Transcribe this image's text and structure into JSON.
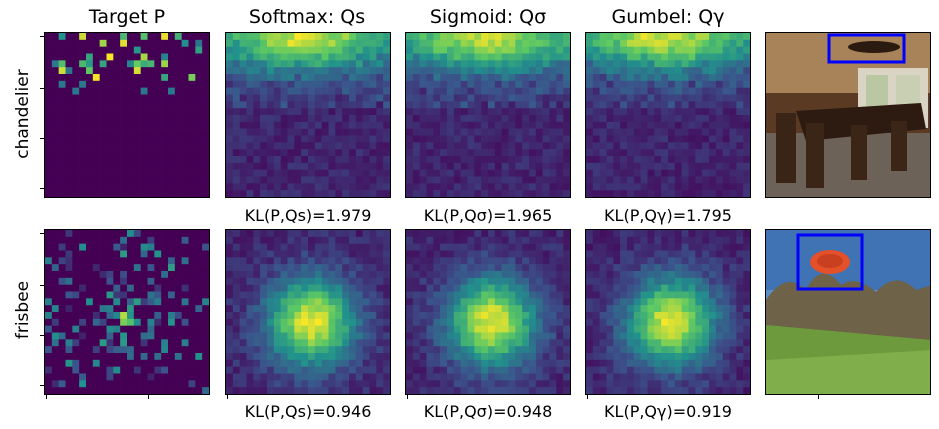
{
  "figure": {
    "columns": [
      "Target P",
      "Softmax: Qs",
      "Sigmoid: Qσ",
      "Gumbel: Qγ",
      ""
    ],
    "rows": [
      {
        "label": "chandelier",
        "kl": [
          "KL(P,Qs)=1.979",
          "KL(P,Qσ)=1.965",
          "KL(P,Qγ)=1.795"
        ]
      },
      {
        "label": "frisbee",
        "kl": [
          "KL(P,Qs)=0.946",
          "KL(P,Qσ)=0.948",
          "KL(P,Qγ)=0.919"
        ]
      }
    ]
  },
  "chart_data": {
    "type": "heatmap",
    "colormap": "viridis",
    "grid_size": 24,
    "panels": [
      {
        "row": "chandelier",
        "column": "Target P",
        "pattern": "sparse-top"
      },
      {
        "row": "chandelier",
        "column": "Softmax: Qs",
        "pattern": "diffuse-top",
        "kl": 1.979
      },
      {
        "row": "chandelier",
        "column": "Sigmoid: Qσ",
        "pattern": "diffuse-top",
        "kl": 1.965
      },
      {
        "row": "chandelier",
        "column": "Gumbel: Qγ",
        "pattern": "diffuse-top",
        "kl": 1.795
      },
      {
        "row": "frisbee",
        "column": "Target P",
        "pattern": "sparse-center"
      },
      {
        "row": "frisbee",
        "column": "Softmax: Qs",
        "pattern": "diffuse-center",
        "kl": 0.946
      },
      {
        "row": "frisbee",
        "column": "Sigmoid: Qσ",
        "pattern": "diffuse-center",
        "kl": 0.948
      },
      {
        "row": "frisbee",
        "column": "Gumbel: Qγ",
        "pattern": "diffuse-center",
        "kl": 0.919
      }
    ],
    "photos": [
      {
        "row": "chandelier",
        "subject": "dining room with chandelier",
        "box_color": "#0000ff"
      },
      {
        "row": "frisbee",
        "subject": "orange frisbee in sky over park",
        "box_color": "#0000ff"
      }
    ]
  }
}
